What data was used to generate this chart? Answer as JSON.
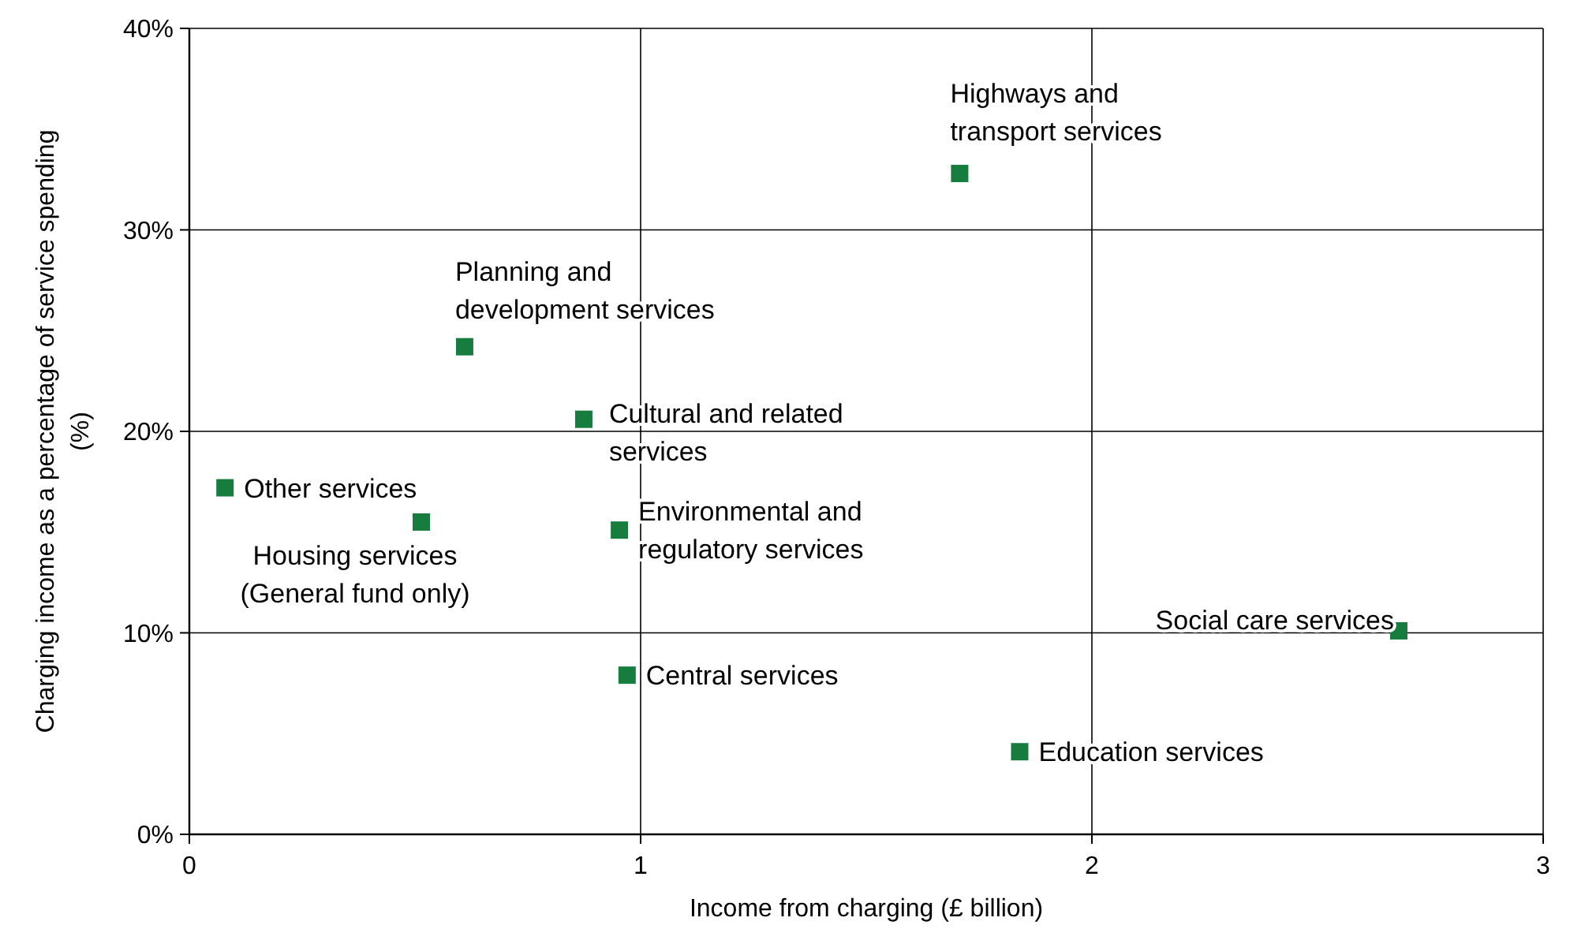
{
  "chart_data": {
    "type": "scatter",
    "xlabel": "Income from charging (£ billion)",
    "ylabel": "Charging income as a percentage of service spending (%)",
    "x": [
      1.707,
      0.61,
      0.874,
      0.079,
      0.514,
      0.953,
      2.68,
      0.97,
      1.84
    ],
    "series": [
      {
        "color": "#177d3e",
        "values": [
          32.8,
          24.2,
          20.6,
          17.2,
          15.5,
          15.1,
          10.1,
          7.9,
          4.1
        ]
      }
    ],
    "marker": "square",
    "grid": true,
    "xlim": [
      0,
      3
    ],
    "xticks": [
      0,
      1,
      2,
      3
    ],
    "ylim": [
      0,
      40
    ],
    "yticks": [
      {
        "value": 0,
        "label": "0%"
      },
      {
        "value": 10,
        "label": "10%"
      },
      {
        "value": 20,
        "label": "20%"
      },
      {
        "value": 30,
        "label": "30%"
      },
      {
        "value": 40,
        "label": "40%"
      }
    ],
    "annotations": [
      {
        "text": "Highways and transport services",
        "x": 1.707,
        "y": 32.8
      },
      {
        "text": "Planning and development services",
        "x": 0.61,
        "y": 24.2
      },
      {
        "text": "Cultural and related services",
        "x": 0.874,
        "y": 20.6
      },
      {
        "text": "Other services",
        "x": 0.079,
        "y": 17.2
      },
      {
        "text": "Housing services (General fund only)",
        "x": 0.514,
        "y": 15.5
      },
      {
        "text": "Environmental and regulatory services",
        "x": 0.953,
        "y": 15.1
      },
      {
        "text": "Social care services",
        "x": 2.68,
        "y": 10.1
      },
      {
        "text": "Central services",
        "x": 0.97,
        "y": 7.9
      },
      {
        "text": "Education services",
        "x": 1.84,
        "y": 4.1
      }
    ]
  }
}
